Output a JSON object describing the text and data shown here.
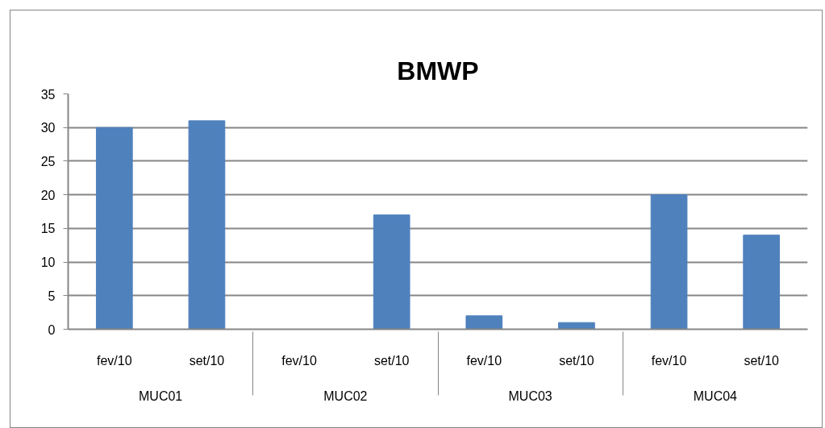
{
  "chart_data": {
    "type": "bar",
    "title": "BMWP",
    "categories": [
      "MUC01",
      "MUC02",
      "MUC03",
      "MUC04"
    ],
    "series": [
      {
        "name": "fev/10",
        "color": "#4f81bd",
        "values": [
          30,
          0,
          2,
          20
        ]
      },
      {
        "name": "set/10",
        "color": "#4f81bd",
        "values": [
          31,
          17,
          1,
          14
        ]
      }
    ],
    "ylim": [
      0,
      35
    ],
    "yticks": [
      0,
      5,
      10,
      15,
      20,
      25,
      30,
      35
    ],
    "grid": "y"
  }
}
